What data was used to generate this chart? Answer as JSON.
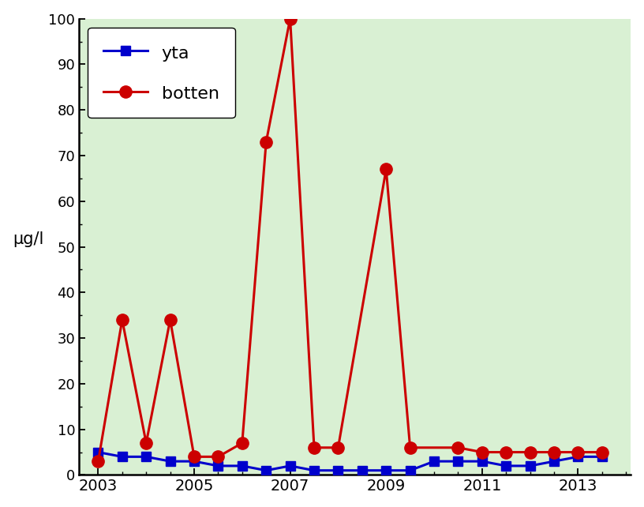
{
  "years_yta": [
    2003,
    2003.5,
    2004,
    2004.5,
    2005,
    2005.5,
    2006,
    2006.5,
    2007,
    2007.5,
    2008,
    2008.5,
    2009,
    2009.5,
    2010,
    2010.5,
    2011,
    2011.5,
    2012,
    2012.5,
    2013,
    2013.5
  ],
  "yta": [
    5,
    4,
    4,
    3,
    3,
    2,
    2,
    1,
    2,
    1,
    1,
    1,
    1,
    1,
    3,
    3,
    3,
    2,
    2,
    3,
    4,
    4
  ],
  "years_botten": [
    2003,
    2003.5,
    2004,
    2004.5,
    2005,
    2005.5,
    2006,
    2006.5,
    2007,
    2007.5,
    2008,
    2009,
    2009.5,
    2010.5,
    2011,
    2011.5,
    2012,
    2012.5,
    2013,
    2013.5
  ],
  "botten": [
    3,
    34,
    7,
    34,
    4,
    4,
    7,
    73,
    100,
    6,
    6,
    67,
    6,
    6,
    5,
    5,
    5,
    5,
    5,
    5
  ],
  "yta_color": "#0000cc",
  "botten_color": "#cc0000",
  "background_color": "#d9f0d3",
  "ylabel": "µg/l",
  "ylim": [
    0,
    100
  ],
  "xlim": [
    2002.6,
    2014.1
  ],
  "xticks": [
    2003,
    2005,
    2007,
    2009,
    2011,
    2013
  ],
  "yticks": [
    0,
    10,
    20,
    30,
    40,
    50,
    60,
    70,
    80,
    90,
    100
  ]
}
